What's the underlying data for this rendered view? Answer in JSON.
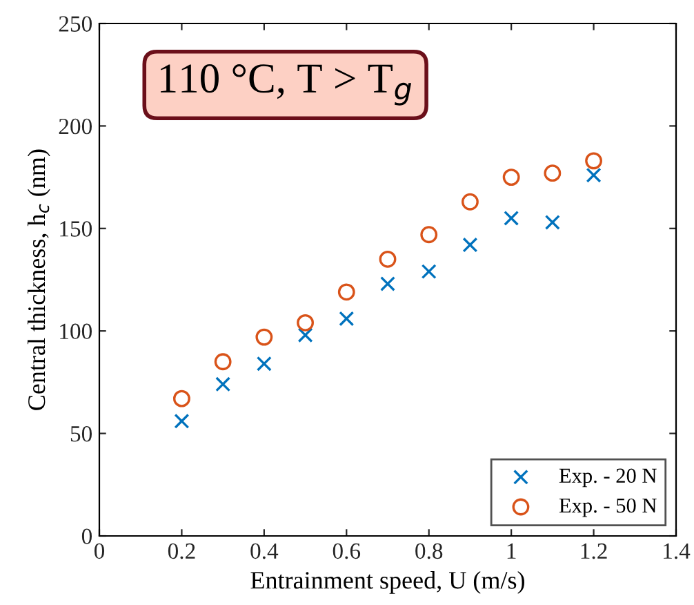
{
  "chart_data": {
    "type": "scatter",
    "xlabel": "Entrainment speed, U (m/s)",
    "ylabel": "Central thickness, h$_{c}$ (nm)",
    "annotations": [
      "110 °C, T > T$_{g}$"
    ],
    "x": [
      0.2,
      0.3,
      0.4,
      0.5,
      0.6,
      0.7,
      0.8,
      0.9,
      1.0,
      1.1,
      1.2
    ],
    "series": [
      {
        "name": "Exp. - 20 N",
        "color": "#0072bd",
        "marker": "cross",
        "values": [
          56,
          74,
          84,
          98,
          106,
          123,
          129,
          142,
          155,
          153,
          176
        ]
      },
      {
        "name": "Exp. - 50 N",
        "color": "#d95319",
        "marker": "circle",
        "values": [
          67,
          85,
          97,
          104,
          119,
          135,
          147,
          163,
          175,
          177,
          183
        ]
      }
    ],
    "xlim": [
      0,
      1.4
    ],
    "xticks": [
      0,
      0.2,
      0.4,
      0.6,
      0.8,
      1,
      1.2,
      1.4
    ],
    "ylim": [
      0,
      250
    ],
    "yticks": [
      0,
      50,
      100,
      150,
      200,
      250
    ],
    "legend": "bottom right"
  }
}
